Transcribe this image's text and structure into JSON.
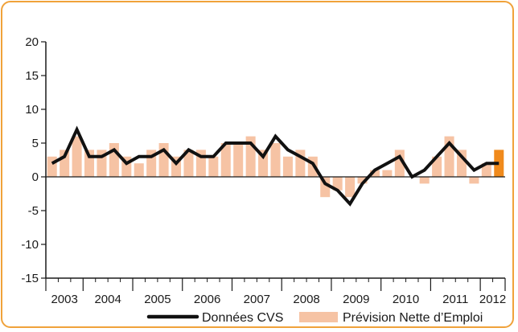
{
  "chart_data": {
    "type": "bar",
    "title": "",
    "xlabel": "",
    "ylabel": "",
    "ylim": [
      -15,
      20
    ],
    "yticks": [
      20,
      15,
      10,
      5,
      0,
      -5,
      -10,
      -15
    ],
    "years": [
      "2003",
      "2004",
      "2005",
      "2006",
      "2007",
      "2008",
      "2009",
      "2010",
      "2011",
      "2012"
    ],
    "grid": false,
    "legend_position": "bottom",
    "series": [
      {
        "name": "Données CVS",
        "type": "line",
        "color": "#111111",
        "values": [
          2,
          3,
          7,
          3,
          3,
          4,
          2,
          3,
          3,
          4,
          2,
          4,
          3,
          3,
          5,
          5,
          5,
          3,
          6,
          4,
          3,
          2,
          -1,
          -2,
          -4,
          -1,
          1,
          2,
          3,
          0,
          1,
          3,
          5,
          3,
          1,
          2,
          2
        ]
      },
      {
        "name": "Prévision Nette d'Emploi",
        "type": "bar",
        "color": "#f6c3a4",
        "highlight_color": "#f08a1c",
        "values": [
          3,
          4,
          6,
          4,
          4,
          5,
          3,
          2,
          4,
          5,
          3,
          4,
          4,
          3,
          5,
          5,
          6,
          4,
          5,
          3,
          4,
          3,
          -3,
          -2,
          -3,
          -1,
          1,
          1,
          4,
          0,
          -1,
          3,
          6,
          4,
          -1,
          2,
          4
        ]
      }
    ]
  },
  "legend": {
    "line_label": "Données CVS",
    "bar_label": "Prévision Nette d’Emploi"
  },
  "colors": {
    "border": "#f0a23a",
    "bar": "#f6c3a4",
    "bar_highlight": "#f08a1c",
    "line": "#111111"
  }
}
